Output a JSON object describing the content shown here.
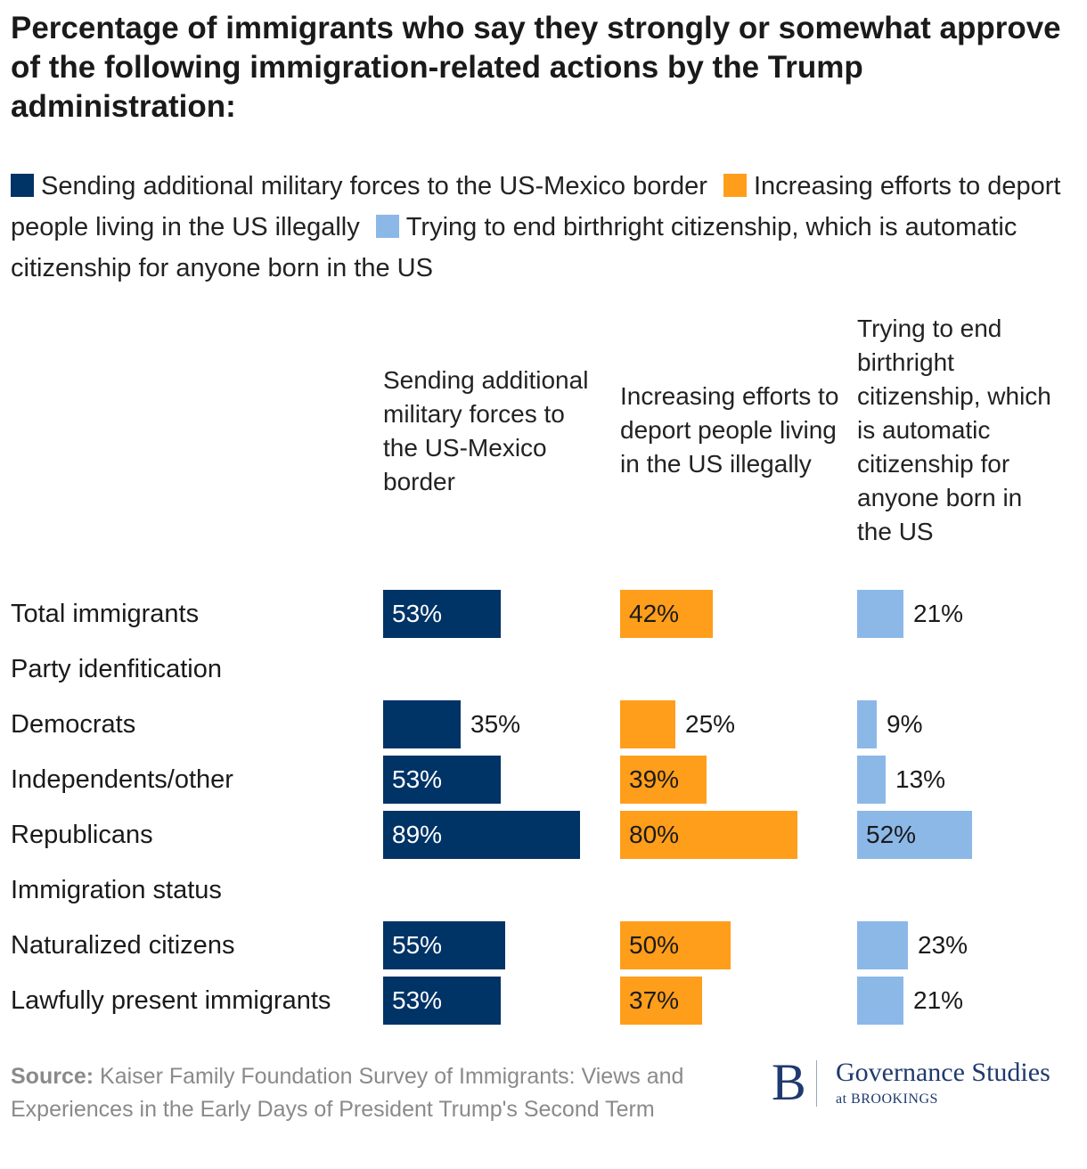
{
  "title": "Percentage of immigrants who say they strongly or somewhat approve of the following immigration-related actions by the Trump administration:",
  "colors": {
    "series1": "#003366",
    "series2": "#ff9e1b",
    "series3": "#8cb8e8"
  },
  "legend": [
    {
      "label": "Sending additional military forces to the US-Mexico border",
      "color": "#003366"
    },
    {
      "label": "Increasing efforts to deport people living in the US illegally",
      "color": "#ff9e1b"
    },
    {
      "label": "Trying to end birthright citizenship, which is automatic citizenship for anyone born in the US",
      "color": "#8cb8e8"
    }
  ],
  "columns": [
    "Sending additional military forces to the US-Mexico border",
    "Increasing efforts to deport people living in the US illegally",
    "Trying to end birthright citizenship, which is automatic citizenship for anyone born in the US"
  ],
  "chart_data": {
    "type": "bar",
    "orientation": "horizontal",
    "layout": "small-multiples",
    "unit": "%",
    "categories": [
      "Total immigrants",
      "Party idenfitication",
      "Democrats",
      "Independents/other",
      "Republicans",
      "Immigration status",
      "Naturalized citizens",
      "Lawfully present immigrants"
    ],
    "series": [
      {
        "name": "Sending additional military forces to the US-Mexico border",
        "values": [
          53,
          null,
          35,
          53,
          89,
          null,
          55,
          53
        ]
      },
      {
        "name": "Increasing efforts to deport people living in the US illegally",
        "values": [
          42,
          null,
          25,
          39,
          80,
          null,
          50,
          37
        ]
      },
      {
        "name": "Trying to end birthright citizenship, which is automatic citizenship for anyone born in the US",
        "values": [
          21,
          null,
          9,
          13,
          52,
          null,
          23,
          21
        ]
      }
    ],
    "labels": [
      [
        "53%",
        null,
        "35%",
        "53%",
        "89%",
        null,
        "55%",
        "53%"
      ],
      [
        "42%",
        null,
        "25%",
        "39%",
        "80%",
        null,
        "50%",
        "37%"
      ],
      [
        "21%",
        null,
        "9%",
        "13%",
        "52%",
        null,
        "23%",
        "21%"
      ]
    ],
    "xlim": [
      0,
      100
    ],
    "grid": false,
    "legend_position": "top"
  },
  "source": {
    "label": "Source:",
    "text": "Kaiser Family Foundation Survey of Immigrants: Views and Experiences in the Early Days of President Trump's Second Term"
  },
  "logo": {
    "letter": "B",
    "name": "Governance Studies",
    "sub": "at BROOKINGS"
  }
}
